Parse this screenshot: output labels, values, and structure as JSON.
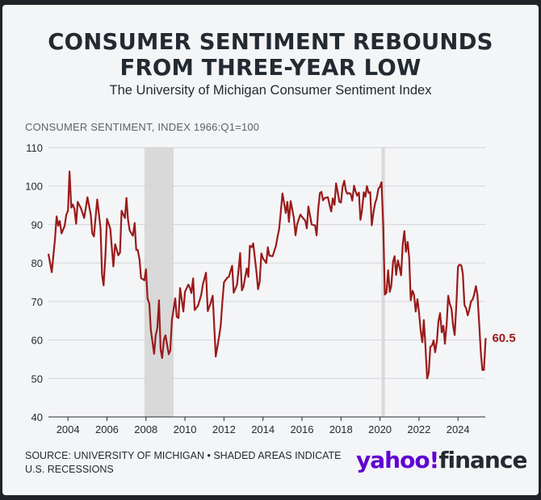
{
  "title_line1": "CONSUMER SENTIMENT REBOUNDS",
  "title_line2": "FROM THREE-YEAR LOW",
  "subtitle": "The University of Michigan Consumer Sentiment Index",
  "source": "SOURCE: UNIVERSITY OF MICHIGAN • SHADED AREAS INDICATE U.S. RECESSIONS",
  "brand": {
    "yahoo": "yahoo!",
    "finance": "finance",
    "purple": "#6001d2"
  },
  "chart_data": {
    "type": "line",
    "ylabel": "CONSUMER SENTIMENT, INDEX 1966:Q1=100",
    "ylim": [
      40,
      110
    ],
    "xlim": [
      2003.0,
      2025.4
    ],
    "yticks": [
      110,
      100,
      90,
      80,
      70,
      60,
      50,
      40
    ],
    "xticks": [
      2004,
      2006,
      2008,
      2010,
      2012,
      2014,
      2016,
      2018,
      2020,
      2022,
      2024
    ],
    "grid": true,
    "line_color": "#9a1a1a",
    "shade_color": "#d9d9d9",
    "recessions": [
      [
        2007.92,
        2009.42
      ],
      [
        2020.08,
        2020.25
      ]
    ],
    "end_label": "60.5",
    "series": [
      {
        "points": [
          [
            2003.0,
            82.4
          ],
          [
            2003.17,
            77.6
          ],
          [
            2003.33,
            86.0
          ],
          [
            2003.42,
            92.1
          ],
          [
            2003.5,
            89.7
          ],
          [
            2003.58,
            90.9
          ],
          [
            2003.67,
            87.7
          ],
          [
            2003.83,
            89.6
          ],
          [
            2003.92,
            92.6
          ],
          [
            2004.0,
            93.6
          ],
          [
            2004.08,
            103.8
          ],
          [
            2004.17,
            94.4
          ],
          [
            2004.25,
            95.2
          ],
          [
            2004.33,
            94.1
          ],
          [
            2004.42,
            90.2
          ],
          [
            2004.5,
            95.9
          ],
          [
            2004.67,
            94.2
          ],
          [
            2004.83,
            91.7
          ],
          [
            2004.92,
            94.5
          ],
          [
            2005.0,
            97.1
          ],
          [
            2005.17,
            92.6
          ],
          [
            2005.25,
            87.7
          ],
          [
            2005.33,
            86.9
          ],
          [
            2005.5,
            96.5
          ],
          [
            2005.67,
            89.1
          ],
          [
            2005.75,
            76.9
          ],
          [
            2005.83,
            74.2
          ],
          [
            2005.92,
            81.6
          ],
          [
            2006.0,
            91.5
          ],
          [
            2006.17,
            88.9
          ],
          [
            2006.33,
            79.1
          ],
          [
            2006.42,
            84.9
          ],
          [
            2006.58,
            82.0
          ],
          [
            2006.67,
            82.7
          ],
          [
            2006.75,
            93.6
          ],
          [
            2006.92,
            91.7
          ],
          [
            2007.0,
            96.9
          ],
          [
            2007.08,
            91.3
          ],
          [
            2007.17,
            88.4
          ],
          [
            2007.33,
            87.1
          ],
          [
            2007.42,
            90.4
          ],
          [
            2007.5,
            83.4
          ],
          [
            2007.58,
            83.4
          ],
          [
            2007.67,
            80.9
          ],
          [
            2007.75,
            76.1
          ],
          [
            2007.92,
            75.5
          ],
          [
            2008.0,
            78.4
          ],
          [
            2008.08,
            70.8
          ],
          [
            2008.17,
            69.5
          ],
          [
            2008.25,
            62.6
          ],
          [
            2008.42,
            56.4
          ],
          [
            2008.5,
            61.2
          ],
          [
            2008.58,
            63.0
          ],
          [
            2008.67,
            70.3
          ],
          [
            2008.75,
            57.6
          ],
          [
            2008.83,
            55.3
          ],
          [
            2008.92,
            60.1
          ],
          [
            2009.0,
            61.2
          ],
          [
            2009.17,
            56.3
          ],
          [
            2009.25,
            57.3
          ],
          [
            2009.33,
            65.1
          ],
          [
            2009.5,
            70.8
          ],
          [
            2009.58,
            66.0
          ],
          [
            2009.67,
            65.7
          ],
          [
            2009.75,
            73.5
          ],
          [
            2009.83,
            70.6
          ],
          [
            2009.92,
            67.4
          ],
          [
            2010.0,
            72.5
          ],
          [
            2010.17,
            74.4
          ],
          [
            2010.25,
            73.6
          ],
          [
            2010.33,
            72.2
          ],
          [
            2010.42,
            76.0
          ],
          [
            2010.5,
            67.8
          ],
          [
            2010.67,
            68.9
          ],
          [
            2010.83,
            71.6
          ],
          [
            2010.92,
            74.5
          ],
          [
            2011.08,
            77.5
          ],
          [
            2011.17,
            67.5
          ],
          [
            2011.33,
            69.8
          ],
          [
            2011.42,
            71.5
          ],
          [
            2011.5,
            63.7
          ],
          [
            2011.58,
            55.7
          ],
          [
            2011.75,
            60.8
          ],
          [
            2011.83,
            63.7
          ],
          [
            2011.92,
            69.9
          ],
          [
            2012.0,
            75.0
          ],
          [
            2012.17,
            76.2
          ],
          [
            2012.25,
            76.4
          ],
          [
            2012.42,
            79.3
          ],
          [
            2012.5,
            72.3
          ],
          [
            2012.67,
            74.3
          ],
          [
            2012.75,
            78.3
          ],
          [
            2012.83,
            82.6
          ],
          [
            2012.92,
            72.9
          ],
          [
            2013.0,
            73.8
          ],
          [
            2013.17,
            78.6
          ],
          [
            2013.25,
            76.4
          ],
          [
            2013.33,
            84.5
          ],
          [
            2013.42,
            84.1
          ],
          [
            2013.5,
            85.1
          ],
          [
            2013.67,
            77.5
          ],
          [
            2013.75,
            73.2
          ],
          [
            2013.83,
            75.1
          ],
          [
            2013.92,
            82.5
          ],
          [
            2014.0,
            81.2
          ],
          [
            2014.17,
            80.0
          ],
          [
            2014.25,
            84.1
          ],
          [
            2014.33,
            81.9
          ],
          [
            2014.5,
            81.8
          ],
          [
            2014.67,
            84.6
          ],
          [
            2014.75,
            86.9
          ],
          [
            2014.83,
            88.8
          ],
          [
            2014.92,
            93.6
          ],
          [
            2015.0,
            98.1
          ],
          [
            2015.17,
            93.0
          ],
          [
            2015.25,
            95.9
          ],
          [
            2015.33,
            90.7
          ],
          [
            2015.42,
            96.1
          ],
          [
            2015.58,
            91.9
          ],
          [
            2015.67,
            87.2
          ],
          [
            2015.75,
            90.0
          ],
          [
            2015.83,
            91.3
          ],
          [
            2015.92,
            92.6
          ],
          [
            2016.0,
            92.0
          ],
          [
            2016.17,
            91.0
          ],
          [
            2016.25,
            89.0
          ],
          [
            2016.33,
            94.7
          ],
          [
            2016.5,
            90.0
          ],
          [
            2016.67,
            89.8
          ],
          [
            2016.75,
            87.2
          ],
          [
            2016.83,
            93.8
          ],
          [
            2016.92,
            98.2
          ],
          [
            2017.0,
            98.5
          ],
          [
            2017.08,
            96.3
          ],
          [
            2017.17,
            96.9
          ],
          [
            2017.33,
            97.1
          ],
          [
            2017.42,
            95.0
          ],
          [
            2017.5,
            93.4
          ],
          [
            2017.58,
            96.8
          ],
          [
            2017.67,
            95.1
          ],
          [
            2017.75,
            100.7
          ],
          [
            2017.83,
            98.5
          ],
          [
            2017.92,
            95.9
          ],
          [
            2018.0,
            95.7
          ],
          [
            2018.08,
            99.7
          ],
          [
            2018.17,
            101.4
          ],
          [
            2018.25,
            98.8
          ],
          [
            2018.33,
            98.0
          ],
          [
            2018.42,
            98.2
          ],
          [
            2018.5,
            97.9
          ],
          [
            2018.58,
            96.2
          ],
          [
            2018.67,
            100.1
          ],
          [
            2018.75,
            98.6
          ],
          [
            2018.83,
            97.5
          ],
          [
            2018.92,
            98.3
          ],
          [
            2019.0,
            91.2
          ],
          [
            2019.08,
            93.8
          ],
          [
            2019.17,
            98.4
          ],
          [
            2019.25,
            97.2
          ],
          [
            2019.33,
            100.0
          ],
          [
            2019.42,
            98.2
          ],
          [
            2019.5,
            98.4
          ],
          [
            2019.58,
            89.8
          ],
          [
            2019.67,
            93.2
          ],
          [
            2019.75,
            95.5
          ],
          [
            2019.83,
            96.8
          ],
          [
            2019.92,
            99.3
          ],
          [
            2020.0,
            99.8
          ],
          [
            2020.08,
            101.0
          ],
          [
            2020.17,
            89.1
          ],
          [
            2020.25,
            71.8
          ],
          [
            2020.33,
            72.3
          ],
          [
            2020.42,
            78.1
          ],
          [
            2020.5,
            72.5
          ],
          [
            2020.58,
            74.1
          ],
          [
            2020.67,
            80.4
          ],
          [
            2020.75,
            81.8
          ],
          [
            2020.83,
            76.9
          ],
          [
            2020.92,
            80.7
          ],
          [
            2021.0,
            79.0
          ],
          [
            2021.08,
            76.8
          ],
          [
            2021.17,
            84.9
          ],
          [
            2021.25,
            88.3
          ],
          [
            2021.33,
            82.9
          ],
          [
            2021.42,
            85.5
          ],
          [
            2021.5,
            81.2
          ],
          [
            2021.58,
            70.3
          ],
          [
            2021.67,
            72.8
          ],
          [
            2021.75,
            71.7
          ],
          [
            2021.83,
            67.4
          ],
          [
            2021.92,
            70.6
          ],
          [
            2022.0,
            67.2
          ],
          [
            2022.08,
            62.8
          ],
          [
            2022.17,
            59.4
          ],
          [
            2022.25,
            65.2
          ],
          [
            2022.33,
            58.4
          ],
          [
            2022.42,
            50.0
          ],
          [
            2022.5,
            51.5
          ],
          [
            2022.58,
            58.2
          ],
          [
            2022.67,
            58.6
          ],
          [
            2022.75,
            59.9
          ],
          [
            2022.83,
            56.8
          ],
          [
            2022.92,
            59.7
          ],
          [
            2023.0,
            64.9
          ],
          [
            2023.08,
            67.0
          ],
          [
            2023.17,
            62.0
          ],
          [
            2023.25,
            63.7
          ],
          [
            2023.33,
            59.0
          ],
          [
            2023.42,
            64.2
          ],
          [
            2023.5,
            71.5
          ],
          [
            2023.58,
            69.4
          ],
          [
            2023.67,
            68.1
          ],
          [
            2023.75,
            63.8
          ],
          [
            2023.83,
            61.3
          ],
          [
            2023.92,
            69.7
          ],
          [
            2024.0,
            79.0
          ],
          [
            2024.08,
            79.6
          ],
          [
            2024.17,
            79.4
          ],
          [
            2024.25,
            77.2
          ],
          [
            2024.33,
            69.1
          ],
          [
            2024.42,
            68.2
          ],
          [
            2024.5,
            66.4
          ],
          [
            2024.58,
            67.9
          ],
          [
            2024.67,
            70.1
          ],
          [
            2024.75,
            70.5
          ],
          [
            2024.83,
            71.8
          ],
          [
            2024.92,
            74.0
          ],
          [
            2025.0,
            71.7
          ],
          [
            2025.08,
            64.7
          ],
          [
            2025.17,
            57.0
          ],
          [
            2025.25,
            52.2
          ],
          [
            2025.33,
            52.2
          ],
          [
            2025.42,
            60.5
          ]
        ]
      }
    ]
  }
}
